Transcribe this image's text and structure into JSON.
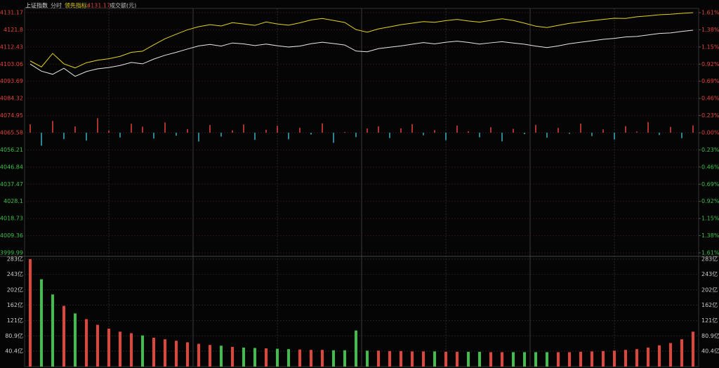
{
  "chart_data": [
    {
      "type": "line",
      "title": "上证指数",
      "period": "分时",
      "ylim": [
        3999.99,
        4131.17
      ],
      "yticks": [
        3999.99,
        4009.36,
        4018.73,
        4028.1,
        4037.47,
        4046.84,
        4056.21,
        4065.58,
        4074.95,
        4084.32,
        4093.69,
        4103.06,
        4112.43,
        4121.8,
        4131.17
      ],
      "y2lim": [
        -1.61,
        1.61
      ],
      "y2ticks": [
        {
          "value": -1.61,
          "label": "1.61%"
        },
        {
          "value": -1.38,
          "label": "1.38%"
        },
        {
          "value": -1.15,
          "label": "1.15%"
        },
        {
          "value": -0.92,
          "label": "0.92%"
        },
        {
          "value": -0.69,
          "label": "0.69%"
        },
        {
          "value": -0.46,
          "label": "0.46%"
        },
        {
          "value": -0.23,
          "label": "0.23%"
        },
        {
          "value": 0,
          "label": "0.00%"
        },
        {
          "value": 0.23,
          "label": "0.23%"
        },
        {
          "value": 0.46,
          "label": "0.46%"
        },
        {
          "value": 0.69,
          "label": "0.69%"
        },
        {
          "value": 0.92,
          "label": "0.92%"
        },
        {
          "value": 1.15,
          "label": "1.15%"
        },
        {
          "value": 1.38,
          "label": "1.38%"
        },
        {
          "value": 1.61,
          "label": "1.61%"
        }
      ],
      "up_color": "#e0453a",
      "down_color": "#39b3c4",
      "series": [
        {
          "name": "上证指数",
          "type": "line",
          "color": "#e8e8e8",
          "values": [
            4103.1,
            4099.2,
            4097.5,
            4100.8,
            4096.4,
            4099.0,
            4100.5,
            4101.2,
            4102.3,
            4104.0,
            4103.2,
            4105.8,
            4107.9,
            4109.5,
            4111.3,
            4113.0,
            4113.8,
            4112.9,
            4114.6,
            4114.1,
            4113.2,
            4114.0,
            4113.1,
            4112.4,
            4112.9,
            4114.2,
            4115.0,
            4114.3,
            4113.5,
            4110.2,
            4109.8,
            4111.5,
            4112.3,
            4113.0,
            4113.9,
            4114.8,
            4114.1,
            4115.0,
            4115.6,
            4114.9,
            4114.0,
            4114.7,
            4115.3,
            4114.6,
            4113.9,
            4112.9,
            4112.1,
            4113.0,
            4114.2,
            4115.0,
            4115.8,
            4116.6,
            4117.1,
            4117.9,
            4118.2,
            4119.0,
            4119.8,
            4120.1,
            4120.9,
            4121.6
          ]
        },
        {
          "name": "领先指标:",
          "type": "line",
          "color": "#e6d31c",
          "values": [
            4104.8,
            4101.5,
            4108.9,
            4103.2,
            4101.0,
            4103.8,
            4105.2,
            4106.0,
            4107.3,
            4109.5,
            4110.1,
            4113.6,
            4116.9,
            4119.4,
            4121.8,
            4123.5,
            4124.6,
            4123.9,
            4125.7,
            4125.0,
            4124.2,
            4126.1,
            4125.0,
            4124.3,
            4125.6,
            4127.2,
            4128.0,
            4126.9,
            4125.8,
            4121.9,
            4120.5,
            4122.3,
            4123.4,
            4124.6,
            4125.4,
            4126.3,
            4125.9,
            4126.8,
            4127.5,
            4126.6,
            4126.0,
            4126.9,
            4127.8,
            4126.9,
            4125.4,
            4123.8,
            4123.0,
            4124.2,
            4125.3,
            4126.1,
            4126.8,
            4127.5,
            4128.1,
            4128.0,
            4128.9,
            4129.4,
            4130.0,
            4130.3,
            4130.8,
            4131.17
          ]
        },
        {
          "type": "bar",
          "values": [
            4070.2,
            4058.5,
            4072.0,
            4062.1,
            4069.0,
            4061.3,
            4073.5,
            4066.8,
            4063.0,
            4070.5,
            4068.9,
            4062.4,
            4071.2,
            4064.0,
            4067.5,
            4060.8,
            4069.8,
            4063.5,
            4066.9,
            4070.1,
            4061.7,
            4067.2,
            4069.4,
            4062.0,
            4068.3,
            4064.6,
            4070.7,
            4060.1,
            4066.0,
            4063.2,
            4067.9,
            4069.1,
            4062.7,
            4068.0,
            4070.3,
            4064.2,
            4067.0,
            4061.5,
            4069.5,
            4066.4,
            4063.1,
            4068.6,
            4060.9,
            4067.7,
            4064.8,
            4069.9,
            4062.9,
            4068.2,
            4065.0,
            4070.6,
            4063.8,
            4067.4,
            4061.9,
            4069.2,
            4066.2,
            4071.4,
            4064.3,
            4068.8,
            4062.6,
            4069.6
          ]
        }
      ]
    },
    {
      "type": "bar",
      "title": "成交额(元)",
      "ylim": [
        0,
        283
      ],
      "yticks": [
        {
          "value": 40.4,
          "label": "40.4亿"
        },
        {
          "value": 80.9,
          "label": "80.9亿"
        },
        {
          "value": 121,
          "label": "121亿"
        },
        {
          "value": 162,
          "label": "162亿"
        },
        {
          "value": 202,
          "label": "202亿"
        },
        {
          "value": 243,
          "label": "243亿"
        },
        {
          "value": 283,
          "label": "283亿"
        }
      ],
      "up_color": "#e0453a",
      "down_color": "#3fbf4a",
      "values": [
        283,
        230,
        190,
        160,
        140,
        125,
        110,
        100,
        92,
        88,
        82,
        76,
        72,
        68,
        64,
        60,
        57,
        55,
        52,
        50,
        49,
        48,
        47,
        46,
        45,
        44,
        44,
        43,
        43,
        95,
        42,
        42,
        41,
        41,
        40,
        40,
        40,
        39,
        39,
        39,
        39,
        38,
        38,
        38,
        38,
        38,
        38,
        38,
        38,
        39,
        40,
        41,
        42,
        44,
        46,
        50,
        56,
        62,
        72,
        92
      ]
    }
  ]
}
